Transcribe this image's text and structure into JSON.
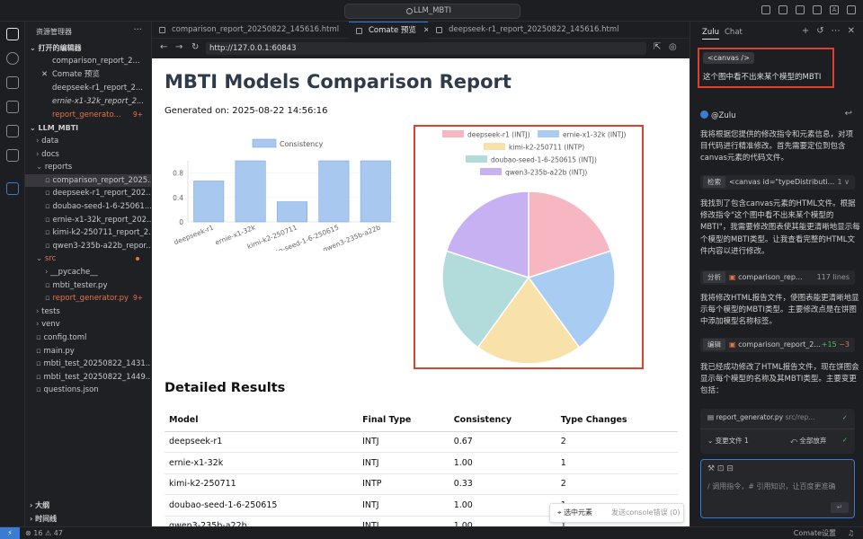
{
  "window": {
    "search": "LLM_MBTI"
  },
  "explorer": {
    "title": "资源管理器",
    "open_editors_label": "打开的编辑器",
    "open_editors": [
      {
        "name": "comparison_report_2...",
        "italic": false,
        "err": false,
        "badge": ""
      },
      {
        "name": "Comate 预览",
        "italic": false,
        "err": false,
        "badge": "",
        "close": "✕"
      },
      {
        "name": "deepseek-r1_report_2...",
        "italic": false,
        "err": false,
        "badge": ""
      },
      {
        "name": "ernie-x1-32k_report_2...",
        "italic": true,
        "err": false,
        "badge": ""
      },
      {
        "name": "report_generato...",
        "italic": false,
        "err": true,
        "badge": "9+"
      }
    ],
    "project_label": "LLM_MBTI",
    "tree": [
      {
        "name": "data",
        "indent": 1,
        "folder": true
      },
      {
        "name": "docs",
        "indent": 1,
        "folder": true
      },
      {
        "name": "reports",
        "indent": 1,
        "folder": true,
        "open": true
      },
      {
        "name": "comparison_report_2025...",
        "indent": 2,
        "sel": true
      },
      {
        "name": "deepseek-r1_report_202...",
        "indent": 2
      },
      {
        "name": "doubao-seed-1-6-25061...",
        "indent": 2
      },
      {
        "name": "ernie-x1-32k_report_202...",
        "indent": 2
      },
      {
        "name": "kimi-k2-250711_report_2...",
        "indent": 2
      },
      {
        "name": "qwen3-235b-a22b_repor...",
        "indent": 2
      },
      {
        "name": "src",
        "indent": 1,
        "folder": true,
        "open": true,
        "err": true,
        "dot": true
      },
      {
        "name": "__pycache__",
        "indent": 2,
        "folder": true
      },
      {
        "name": "mbti_tester.py",
        "indent": 2
      },
      {
        "name": "report_generator.py",
        "indent": 2,
        "err": true,
        "badge": "9+"
      },
      {
        "name": "tests",
        "indent": 1,
        "folder": true
      },
      {
        "name": "venv",
        "indent": 1,
        "folder": true
      },
      {
        "name": "config.toml",
        "indent": 1
      },
      {
        "name": "main.py",
        "indent": 1
      },
      {
        "name": "mbti_test_20250822_1431...",
        "indent": 1
      },
      {
        "name": "mbti_test_20250822_1449...",
        "indent": 1
      },
      {
        "name": "questions.json",
        "indent": 1
      }
    ],
    "outline_label": "大纲",
    "timeline_label": "时间线"
  },
  "editor": {
    "tabs": [
      {
        "label": "comparison_report_20250822_145616.html",
        "active": false
      },
      {
        "label": "Comate 预览",
        "active": true,
        "close": "✕"
      },
      {
        "label": "deepseek-r1_report_20250822_145616.html",
        "active": false
      }
    ],
    "url": "http://127.0.0.1:60843"
  },
  "report": {
    "title": "MBTI Models Comparison Report",
    "generated": "Generated on: 2025-08-22 14:56:16",
    "results_title": "Detailed Results",
    "table_headers": [
      "Model",
      "Final Type",
      "Consistency",
      "Type Changes"
    ],
    "rows": [
      [
        "deepseek-r1",
        "INTJ",
        "0.67",
        "2"
      ],
      [
        "ernie-x1-32k",
        "INTJ",
        "1.00",
        "1"
      ],
      [
        "kimi-k2-250711",
        "INTP",
        "0.33",
        "2"
      ],
      [
        "doubao-seed-1-6-250615",
        "INTJ",
        "1.00",
        "1"
      ],
      [
        "qwen3-235b-a22b",
        "INTJ",
        "1.00",
        "1"
      ]
    ],
    "float_select": "选中元素",
    "float_console": "发送console错误 (0)"
  },
  "chart_data": [
    {
      "type": "bar",
      "categories": [
        "deepseek-r1",
        "ernie-x1-32k",
        "kimi-k2-250711",
        "doubao-seed-1-6-250615",
        "qwen3-235b-a22b"
      ],
      "series": [
        {
          "name": "Consistency",
          "values": [
            0.67,
            1.0,
            0.33,
            1.0,
            1.0
          ]
        }
      ],
      "yticks": [
        "0",
        "0.4",
        "0.8"
      ],
      "ylim": [
        0,
        1
      ],
      "color": "#a8c8f0",
      "legend": "top"
    },
    {
      "type": "pie",
      "labels": [
        "deepseek-r1 (INTJ)",
        "ernie-x1-32k (INTJ)",
        "kimi-k2-250711 (INTP)",
        "doubao-seed-1-6-250615 (INTJ)",
        "qwen3-235b-a22b (INTJ)"
      ],
      "values": [
        1,
        1,
        1,
        1,
        1
      ],
      "colors": [
        "#f6b6c2",
        "#a9cdf2",
        "#f9e2aa",
        "#b2dcdc",
        "#c8b1f2"
      ],
      "legend": "top"
    }
  ],
  "chat": {
    "tabs": [
      "Zulu",
      "Chat"
    ],
    "chip": "<canvas />",
    "user_message": "这个图中看不出来某个模型的MBTI",
    "bot_name": "@Zulu",
    "msg1": "我将根据您提供的修改指令和元素信息，对项目代码进行精准修改。首先需要定位到包含canvas元素的代码文件。",
    "tool1_label": "检索",
    "tool1_text": "<canvas id=\"typeDistributi...",
    "tool1_right": "1 ∨",
    "msg2": "我找到了包含canvas元素的HTML文件。根据修改指令\"这个图中看不出来某个模型的MBTI\"，我需要修改图表使其能更清晰地显示每个模型的MBTI类型。让我查看完整的HTML文件内容以进行修改。",
    "tool2_label": "分析",
    "tool2_text": "comparison_rep...",
    "tool2_right": "117 lines",
    "msg3": "我将修改HTML报告文件，使图表能更清晰地显示每个模型的MBTI类型。主要修改点是在饼图中添加模型名称标签。",
    "tool3_label": "编辑",
    "tool3_text": "comparison_report_2...",
    "tool3_add": "+15",
    "tool3_del": "−3",
    "msg4": "我已经成功修改了HTML报告文件，现在饼图会显示每个模型的名称及其MBTI类型。主要变更包括：",
    "change_file": "report_generator.py",
    "change_path": "src/rep...",
    "change_count": "变更文件 1",
    "discard_all": "全部放弃",
    "input_placeholder": "/ 调用指令，# 引用知识，让百度更准确"
  },
  "status": {
    "errors": "16",
    "warnings": "47",
    "right": "Comate设置"
  }
}
